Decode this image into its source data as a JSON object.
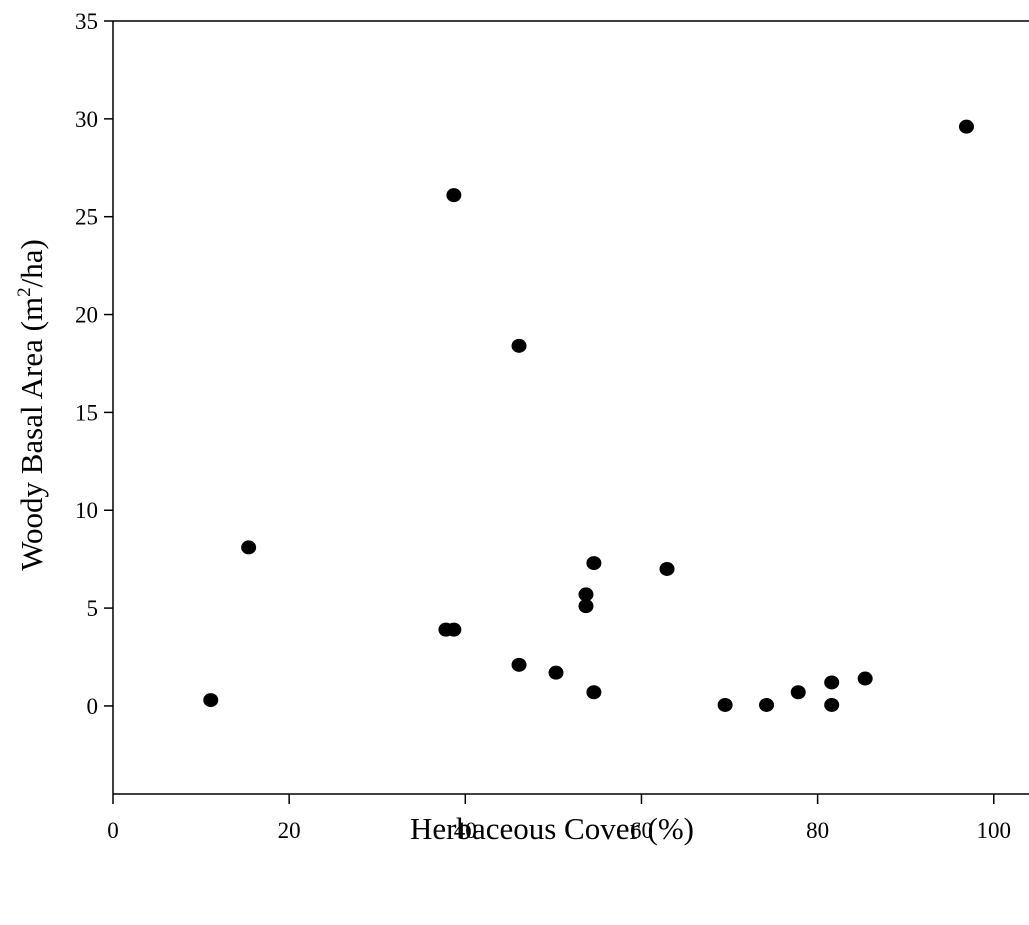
{
  "chart_data": {
    "type": "scatter",
    "xlabel": "Herbaceous Cover (%)",
    "ylabel": {
      "prefix": "Woody Basal Area (m",
      "superscript": "2",
      "suffix": "/ha)"
    },
    "xlim": [
      0,
      104
    ],
    "ylim": [
      -4.5,
      35
    ],
    "x_ticks": [
      0,
      20,
      40,
      60,
      80,
      100
    ],
    "y_ticks": [
      0,
      5,
      10,
      15,
      20,
      25,
      30,
      35
    ],
    "grid": false,
    "marker_color": "#000000",
    "series": [
      {
        "points": [
          {
            "x": 11.1,
            "y": 0.3
          },
          {
            "x": 15.4,
            "y": 8.1
          },
          {
            "x": 37.8,
            "y": 3.9
          },
          {
            "x": 38.7,
            "y": 3.9
          },
          {
            "x": 38.7,
            "y": 26.1
          },
          {
            "x": 46.1,
            "y": 18.4
          },
          {
            "x": 46.1,
            "y": 2.1
          },
          {
            "x": 50.3,
            "y": 1.7
          },
          {
            "x": 53.7,
            "y": 5.7
          },
          {
            "x": 53.7,
            "y": 5.1
          },
          {
            "x": 54.6,
            "y": 7.3
          },
          {
            "x": 54.6,
            "y": 0.7
          },
          {
            "x": 62.9,
            "y": 7.0
          },
          {
            "x": 69.5,
            "y": 0.05
          },
          {
            "x": 74.2,
            "y": 0.05
          },
          {
            "x": 77.8,
            "y": 0.7
          },
          {
            "x": 81.6,
            "y": 1.2
          },
          {
            "x": 81.6,
            "y": 0.05
          },
          {
            "x": 85.4,
            "y": 1.4
          },
          {
            "x": 96.9,
            "y": 29.6
          }
        ]
      }
    ]
  }
}
